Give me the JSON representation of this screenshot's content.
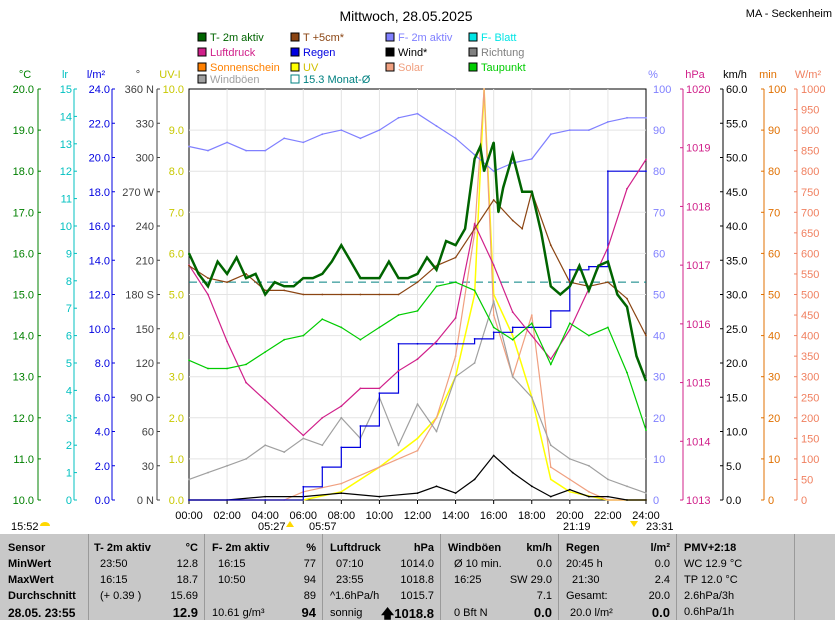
{
  "title": "Mittwoch, 28.05.2025",
  "station": "MA - Seckenheim",
  "legend": [
    {
      "label": "T- 2m aktiv",
      "color": "#006400"
    },
    {
      "label": "T +5cm*",
      "color": "#8B4513"
    },
    {
      "label": "F- 2m aktiv",
      "color": "#8080FF"
    },
    {
      "label": "F- Blatt",
      "color": "#00E5E5"
    },
    {
      "label": "Luftdruck",
      "color": "#D0208A"
    },
    {
      "label": "Regen",
      "color": "#0000E0"
    },
    {
      "label": "Wind*",
      "color": "#000000"
    },
    {
      "label": "Richtung",
      "color": "#808080"
    },
    {
      "label": "Sonnenschein",
      "color": "#FF8000"
    },
    {
      "label": "UV",
      "color": "#FFFF00"
    },
    {
      "label": "Solar",
      "color": "#F0A080"
    },
    {
      "label": "Taupunkt",
      "color": "#00CC00"
    },
    {
      "label": "Windböen",
      "color": "#A0A0A0"
    },
    {
      "label": "15.3 Monat-Ø",
      "color": "#008080"
    }
  ],
  "axis_units": {
    "temp": "°C",
    "wetness": "lr",
    "rain": "l/m²",
    "dir": "°",
    "uv": "UV-I",
    "hum": "%",
    "press": "hPa",
    "wind": "km/h",
    "sun": "min",
    "solar": "W/m²"
  },
  "axes": {
    "temp_ticks": [
      "10.0",
      "11.0",
      "12.0",
      "13.0",
      "14.0",
      "15.0",
      "16.0",
      "17.0",
      "18.0",
      "19.0",
      "20.0"
    ],
    "wet_ticks": [
      "0",
      "1",
      "2",
      "3",
      "4",
      "5",
      "6",
      "7",
      "8",
      "9",
      "10",
      "11",
      "12",
      "13",
      "14",
      "15"
    ],
    "rain_ticks": [
      "0.0",
      "2.0",
      "4.0",
      "6.0",
      "8.0",
      "10.0",
      "12.0",
      "14.0",
      "16.0",
      "18.0",
      "20.0",
      "22.0",
      "24.0"
    ],
    "dir_ticks": [
      "0 N",
      "30",
      "60",
      "90 O",
      "120",
      "150",
      "180 S",
      "210",
      "240",
      "270 W",
      "300",
      "330",
      "360 N"
    ],
    "uv_ticks": [
      "0.0",
      "1.0",
      "2.0",
      "3.0",
      "4.0",
      "5.0",
      "6.0",
      "7.0",
      "8.0",
      "9.0",
      "10.0"
    ],
    "hum_ticks": [
      "0",
      "10",
      "20",
      "30",
      "40",
      "50",
      "60",
      "70",
      "80",
      "90",
      "100"
    ],
    "press_ticks": [
      "1013",
      "1014",
      "1015",
      "1016",
      "1017",
      "1018",
      "1019",
      "1020"
    ],
    "wind_ticks": [
      "0.0",
      "5.0",
      "10.0",
      "15.0",
      "20.0",
      "25.0",
      "30.0",
      "35.0",
      "40.0",
      "45.0",
      "50.0",
      "55.0",
      "60.0"
    ],
    "sun_ticks": [
      "0",
      "10",
      "20",
      "30",
      "40",
      "50",
      "60",
      "70",
      "80",
      "90",
      "100"
    ],
    "solar_ticks": [
      "0",
      "50",
      "100",
      "150",
      "200",
      "250",
      "300",
      "350",
      "400",
      "450",
      "500",
      "550",
      "600",
      "650",
      "700",
      "750",
      "800",
      "850",
      "900",
      "950",
      "1000"
    ],
    "time_ticks": [
      "00:00",
      "02:00",
      "04:00",
      "06:00",
      "08:00",
      "10:00",
      "12:00",
      "14:00",
      "16:00",
      "18:00",
      "20:00",
      "22:00",
      "24:00"
    ]
  },
  "sun_times": {
    "first": "15:52",
    "rise": "05:27",
    "rise2": "05:57",
    "set": "21:19",
    "last": "23:31"
  },
  "chart_data": {
    "type": "line",
    "title": "Mittwoch, 28.05.2025",
    "x_unit": "hours",
    "series": [
      {
        "name": "T- 2m aktiv",
        "unit": "°C",
        "color": "#006400",
        "x": [
          0,
          0.5,
          1,
          1.5,
          2,
          2.5,
          3,
          3.5,
          4,
          4.5,
          5,
          5.5,
          6,
          6.5,
          7,
          7.5,
          8,
          8.5,
          9,
          9.5,
          10,
          10.5,
          11,
          11.5,
          12,
          12.5,
          13,
          13.5,
          14,
          14.5,
          15,
          15.3,
          15.5,
          16,
          16.25,
          16.5,
          17,
          17.5,
          18,
          18.5,
          19,
          19.5,
          20,
          20.5,
          21,
          21.5,
          22,
          22.5,
          23,
          23.5,
          24
        ],
        "y": [
          16.0,
          15.5,
          15.2,
          15.8,
          15.5,
          15.9,
          15.4,
          15.5,
          15.0,
          15.3,
          15.2,
          15.2,
          15.4,
          15.4,
          15.5,
          15.8,
          16.2,
          15.8,
          15.4,
          15.4,
          15.4,
          15.8,
          15.4,
          15.4,
          15.5,
          15.9,
          15.6,
          16.3,
          16.2,
          16.6,
          18.3,
          18.6,
          18.0,
          18.7,
          17.0,
          17.6,
          18.4,
          17.5,
          17.5,
          16.5,
          15.2,
          15.0,
          15.2,
          15.7,
          15.1,
          15.7,
          15.8,
          15.0,
          14.7,
          13.5,
          12.9
        ]
      },
      {
        "name": "T +5cm*",
        "unit": "°C",
        "color": "#8B4513",
        "x": [
          0,
          1,
          2,
          3,
          4,
          5,
          6,
          7,
          8,
          9,
          10,
          11,
          12,
          13,
          14,
          15,
          16,
          17,
          17.5,
          18,
          19,
          20,
          21,
          22,
          23,
          24
        ],
        "y": [
          15.7,
          15.4,
          15.3,
          15.5,
          15.1,
          15.1,
          15.0,
          15.0,
          15.0,
          15.0,
          15.0,
          15.0,
          15.3,
          15.7,
          15.9,
          16.6,
          17.3,
          16.8,
          16.6,
          17.5,
          16.2,
          15.3,
          15.2,
          15.3,
          14.9,
          14.0
        ]
      },
      {
        "name": "Taupunkt",
        "unit": "°C",
        "color": "#00CC00",
        "x": [
          0,
          1,
          2,
          3,
          4,
          5,
          6,
          7,
          8,
          9,
          10,
          11,
          12,
          13,
          14,
          15,
          16,
          17,
          18,
          19,
          20,
          21,
          22,
          23,
          24
        ],
        "y": [
          13.4,
          13.2,
          13.2,
          13.3,
          13.6,
          13.9,
          14.0,
          14.4,
          14.2,
          13.9,
          14.2,
          14.5,
          14.6,
          15.2,
          15.3,
          15.1,
          14.2,
          13.9,
          14.3,
          13.3,
          14.3,
          14.0,
          14.2,
          13.1,
          11.7
        ]
      },
      {
        "name": "F- 2m aktiv",
        "unit": "%",
        "color": "#8080FF",
        "x": [
          0,
          1,
          2,
          3,
          4,
          5,
          6,
          7,
          8,
          9,
          10,
          11,
          12,
          13,
          14,
          15,
          16,
          17,
          18,
          19,
          20,
          21,
          22,
          23,
          24
        ],
        "y": [
          86,
          85,
          87,
          85,
          85,
          88,
          87,
          89,
          90,
          88,
          90,
          93,
          94,
          91,
          88,
          84,
          80,
          82,
          83,
          89,
          90,
          90,
          92,
          93,
          93
        ]
      },
      {
        "name": "Luftdruck",
        "unit": "hPa",
        "color": "#D0208A",
        "x": [
          0,
          1,
          2,
          3,
          4,
          5,
          6,
          7,
          8,
          9,
          10,
          11,
          12,
          13,
          14,
          15,
          16,
          17,
          18,
          19,
          20,
          21,
          22,
          23,
          24
        ],
        "y": [
          1017.0,
          1016.5,
          1015.7,
          1015.0,
          1014.7,
          1014.4,
          1014.1,
          1014.4,
          1014.6,
          1014.9,
          1014.9,
          1015.2,
          1015.4,
          1015.7,
          1016.1,
          1017.7,
          1017.0,
          1016.2,
          1015.8,
          1015.4,
          1015.9,
          1016.6,
          1017.3,
          1018.3,
          1018.8
        ]
      },
      {
        "name": "Regen",
        "unit": "l/m²",
        "color": "#0000E0",
        "x": [
          0,
          4,
          6,
          7,
          8,
          9,
          10,
          11,
          12,
          13,
          14,
          15,
          16,
          17,
          18,
          19,
          20,
          20.5,
          21,
          21.5,
          22,
          24
        ],
        "y": [
          0.0,
          0.0,
          0.8,
          2.0,
          3.2,
          4.5,
          6.5,
          9.5,
          9.5,
          9.5,
          9.5,
          9.8,
          10.2,
          10.5,
          10.5,
          11.5,
          14.0,
          14.0,
          14.2,
          14.2,
          20.0,
          20.0
        ]
      },
      {
        "name": "Wind*",
        "unit": "km/h",
        "color": "#000000",
        "x": [
          0,
          2,
          4,
          6,
          8,
          10,
          12,
          13,
          14,
          15,
          16,
          17,
          18,
          19,
          20,
          21,
          22,
          23,
          24
        ],
        "y": [
          0.0,
          0.0,
          0.5,
          0.5,
          1.0,
          0.5,
          1.0,
          2.0,
          1.0,
          3.0,
          6.5,
          4.0,
          2.0,
          0.5,
          1.5,
          0.5,
          0.5,
          0.0,
          0.0
        ]
      },
      {
        "name": "Windböen",
        "unit": "km/h",
        "color": "#A0A0A0",
        "x": [
          0,
          1,
          2,
          3,
          4,
          5,
          6,
          7,
          8,
          9,
          10,
          11,
          12,
          13,
          14,
          15,
          16,
          17,
          18,
          19,
          20,
          21,
          22,
          23,
          24
        ],
        "y": [
          3,
          4,
          5,
          6,
          8,
          7,
          9,
          8,
          12,
          9,
          15,
          8,
          14,
          10,
          18,
          20,
          29,
          18,
          15,
          8,
          6,
          5,
          3,
          2,
          1
        ]
      },
      {
        "name": "Solar",
        "unit": "W/m²",
        "color": "#F0A080",
        "x": [
          0,
          5,
          6,
          8,
          10,
          12,
          13,
          14,
          15,
          15.5,
          16,
          17,
          18,
          19,
          20,
          21,
          22,
          24
        ],
        "y": [
          0,
          0,
          20,
          40,
          80,
          120,
          200,
          350,
          650,
          1000,
          450,
          300,
          450,
          80,
          50,
          20,
          0,
          0
        ]
      },
      {
        "name": "UV",
        "unit": "UV-I",
        "color": "#FFFF00",
        "x": [
          0,
          6,
          8,
          10,
          12,
          13,
          14,
          15,
          15.5,
          16,
          17,
          18,
          19,
          20,
          22,
          24
        ],
        "y": [
          0,
          0,
          0.2,
          0.8,
          1.5,
          2.0,
          3.0,
          5.0,
          10.0,
          5.0,
          4.0,
          2.5,
          0.5,
          0.2,
          0,
          0
        ]
      }
    ],
    "reference_line": {
      "name": "15.3 Monat-Ø",
      "unit": "°C",
      "value": 15.3
    },
    "ylim_temp": [
      10,
      20
    ],
    "ylim_hum": [
      0,
      100
    ],
    "ylim_press": [
      1013,
      1020
    ],
    "ylim_rain": [
      0,
      25
    ],
    "ylim_wind": [
      0,
      60
    ],
    "ylim_solar": [
      0,
      1000
    ],
    "ylim_uv": [
      0,
      10
    ]
  },
  "stats": {
    "sensor": {
      "label": "Sensor",
      "min": "MinWert",
      "max": "MaxWert",
      "avg": "Durchschnitt",
      "date": "28.05. 23:55"
    },
    "temp": {
      "title": "T- 2m aktiv",
      "unit": "°C",
      "min_time": "23:50",
      "min_val": "12.8",
      "max_time": "16:15",
      "max_val": "18.7",
      "trend": "(+ 0.39 )",
      "avg": "15.69",
      "current": "12.9"
    },
    "hum": {
      "title": "F- 2m aktiv",
      "unit": "%",
      "min_time": "16:15",
      "min_val": "77",
      "max_time": "10:50",
      "max_val": "94",
      "avg": "89",
      "abs": "10.61 g/m³",
      "current": "94"
    },
    "press": {
      "title": "Luftdruck",
      "unit": "hPa",
      "min_time": "07:10",
      "min_val": "1014.0",
      "max_time": "23:55",
      "max_val": "1018.8",
      "trend": "^1.6hPa/h",
      "avg": "1015.7",
      "state": "sonnig",
      "current": "1018.8"
    },
    "wind": {
      "title": "Windböen",
      "unit": "km/h",
      "avg10_label": "Ø 10 min.",
      "avg10": "0.0",
      "max_time": "16:25",
      "max_val": "SW 29.0",
      "avg": "7.1",
      "bft": "0 Bft N",
      "current": "0.0"
    },
    "rain": {
      "title": "Regen",
      "unit": "l/m²",
      "last_time": "20:45 h",
      "last_val": "0.0",
      "t2": "21:30",
      "t2_val": "2.4",
      "total_label": "Gesamt:",
      "total": "20.0",
      "day": "20.0 l/m²",
      "current": "0.0"
    },
    "pmv": {
      "title": "PMV+2:18",
      "l1": "WC 12.9 °C",
      "l2": "TP 12.0 °C",
      "l3": "2.6hPa/3h",
      "l4": "0.6hPa/1h"
    }
  }
}
